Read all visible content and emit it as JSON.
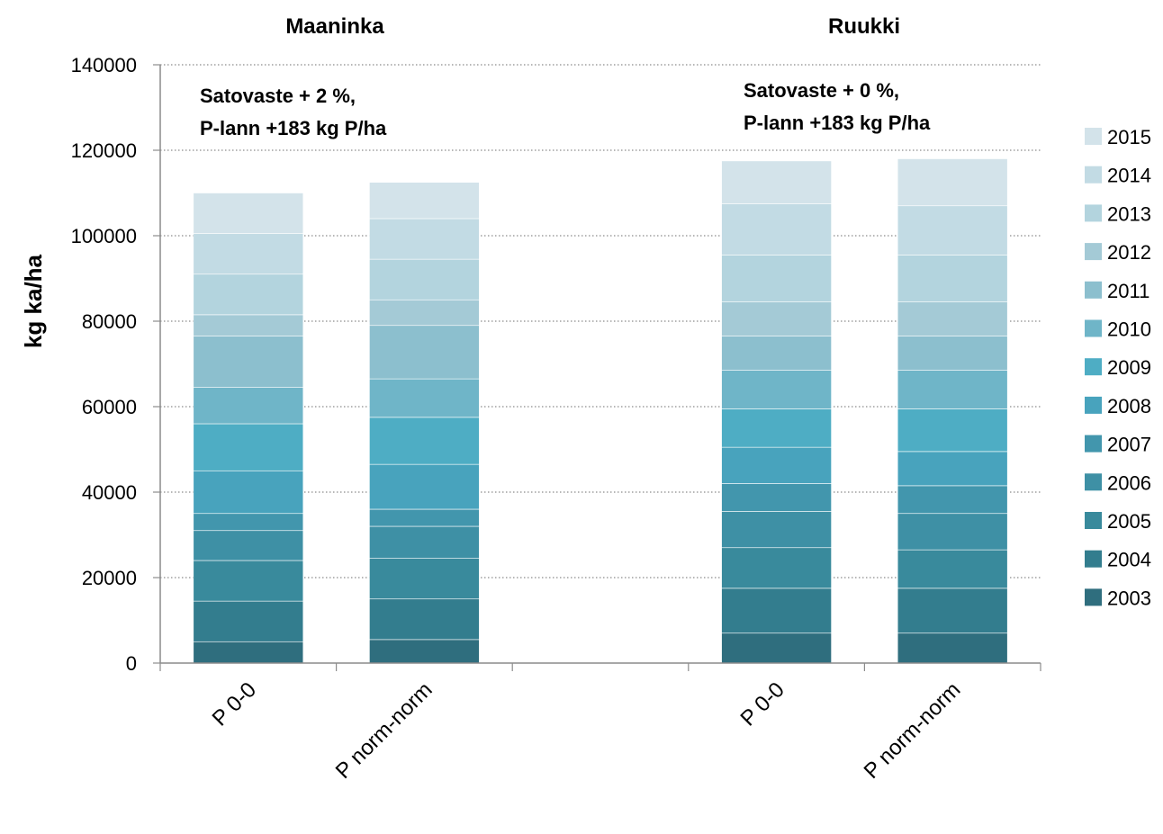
{
  "chart_data": {
    "type": "bar",
    "stacked": true,
    "ylabel": "kg ka/ha",
    "ylim": [
      0,
      140000
    ],
    "ytick_step": 20000,
    "ytick_labels": [
      "0",
      "20000",
      "40000",
      "60000",
      "80000",
      "100000",
      "120000",
      "140000"
    ],
    "grid": "horizontal dotted",
    "legend_position": "right",
    "groups": [
      {
        "title": "Maaninka",
        "annotation_lines": [
          "Satovaste + 2 %,",
          "P-lann +183 kg P/ha"
        ]
      },
      {
        "title": "Ruukki",
        "annotation_lines": [
          "Satovaste + 0 %,",
          "P-lann +183 kg P/ha"
        ]
      }
    ],
    "categories": [
      {
        "label": "P 0-0",
        "group": 0
      },
      {
        "label": "P norm-norm",
        "group": 0
      },
      {
        "label": "P 0-0",
        "group": 1
      },
      {
        "label": "P norm-norm",
        "group": 1
      }
    ],
    "series": [
      {
        "name": "2003",
        "color": "#2f6e7e",
        "values": [
          5000,
          5500,
          7000,
          7000
        ]
      },
      {
        "name": "2004",
        "color": "#337d8e",
        "values": [
          9500,
          9500,
          10500,
          10500
        ]
      },
      {
        "name": "2005",
        "color": "#398a9c",
        "values": [
          9500,
          9500,
          9500,
          9000
        ]
      },
      {
        "name": "2006",
        "color": "#3e90a5",
        "values": [
          7000,
          7500,
          8500,
          8500
        ]
      },
      {
        "name": "2007",
        "color": "#4296ad",
        "values": [
          4000,
          4000,
          6500,
          6500
        ]
      },
      {
        "name": "2008",
        "color": "#48a3bd",
        "values": [
          10000,
          10500,
          8500,
          8000
        ]
      },
      {
        "name": "2009",
        "color": "#4eadc4",
        "values": [
          11000,
          11000,
          9000,
          10000
        ]
      },
      {
        "name": "2010",
        "color": "#6fb5c8",
        "values": [
          8500,
          9000,
          9000,
          9000
        ]
      },
      {
        "name": "2011",
        "color": "#8cbfce",
        "values": [
          12000,
          12500,
          8000,
          8000
        ]
      },
      {
        "name": "2012",
        "color": "#a4cad6",
        "values": [
          5000,
          6000,
          8000,
          8000
        ]
      },
      {
        "name": "2013",
        "color": "#b3d4de",
        "values": [
          9500,
          9500,
          11000,
          11000
        ]
      },
      {
        "name": "2014",
        "color": "#c2dbe4",
        "values": [
          9500,
          9500,
          12000,
          11500
        ]
      },
      {
        "name": "2015",
        "color": "#d3e3ea",
        "values": [
          9500,
          8500,
          10000,
          11000
        ]
      }
    ]
  }
}
